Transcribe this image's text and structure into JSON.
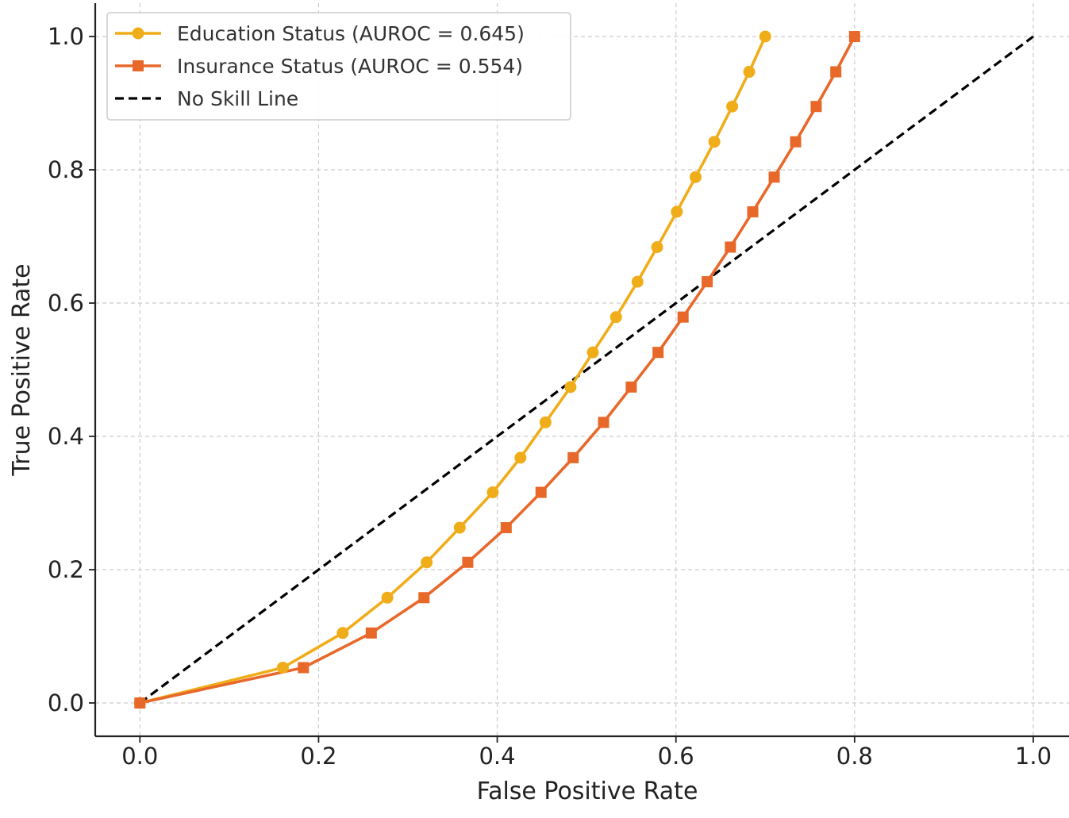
{
  "chart_data": {
    "type": "line",
    "title": "",
    "xlabel": "False Positive Rate",
    "ylabel": "True Positive Rate",
    "xlim": [
      -0.05,
      1.04
    ],
    "ylim": [
      -0.05,
      1.05
    ],
    "xticks": [
      0.0,
      0.2,
      0.4,
      0.6,
      0.8,
      1.0
    ],
    "xtick_labels": [
      "0.0",
      "0.2",
      "0.4",
      "0.6",
      "0.8",
      "1.0"
    ],
    "yticks": [
      0.0,
      0.2,
      0.4,
      0.6,
      0.8,
      1.0
    ],
    "ytick_labels": [
      "0.0",
      "0.2",
      "0.4",
      "0.6",
      "0.8",
      "1.0"
    ],
    "grid": true,
    "legend_position": "top-left",
    "series": [
      {
        "name": "Education Status (AUROC = 0.645)",
        "color": "#f0ad1a",
        "marker": "circle",
        "linestyle": "solid",
        "x": [
          0.0,
          0.16,
          0.227,
          0.277,
          0.321,
          0.358,
          0.395,
          0.426,
          0.454,
          0.482,
          0.507,
          0.533,
          0.557,
          0.579,
          0.601,
          0.622,
          0.643,
          0.663,
          0.682,
          0.7
        ],
        "y": [
          0.0,
          0.053,
          0.105,
          0.158,
          0.211,
          0.263,
          0.316,
          0.368,
          0.421,
          0.474,
          0.526,
          0.579,
          0.632,
          0.684,
          0.737,
          0.789,
          0.842,
          0.895,
          0.947,
          1.0
        ]
      },
      {
        "name": "Insurance Status (AUROC = 0.554)",
        "color": "#e8682a",
        "marker": "square",
        "linestyle": "solid",
        "x": [
          0.0,
          0.183,
          0.259,
          0.318,
          0.367,
          0.41,
          0.449,
          0.485,
          0.519,
          0.55,
          0.58,
          0.608,
          0.635,
          0.661,
          0.686,
          0.71,
          0.734,
          0.757,
          0.779,
          0.8
        ],
        "y": [
          0.0,
          0.053,
          0.105,
          0.158,
          0.211,
          0.263,
          0.316,
          0.368,
          0.421,
          0.474,
          0.526,
          0.579,
          0.632,
          0.684,
          0.737,
          0.789,
          0.842,
          0.895,
          0.947,
          1.0
        ]
      },
      {
        "name": "No Skill Line",
        "color": "#000000",
        "marker": "none",
        "linestyle": "dashed",
        "x": [
          0.0,
          1.0
        ],
        "y": [
          0.0,
          1.0
        ]
      }
    ]
  }
}
